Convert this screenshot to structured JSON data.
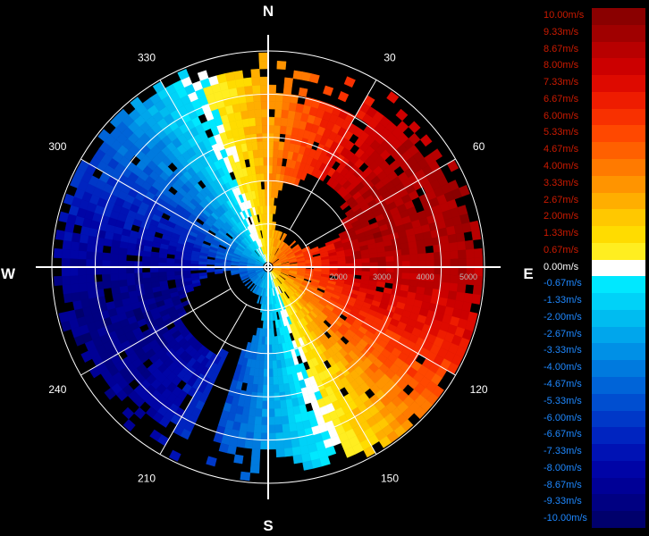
{
  "chart_data": {
    "type": "polar radial-velocity map",
    "grid": true,
    "directions": {
      "north": "N",
      "east": "E",
      "south": "S",
      "west": "W"
    },
    "azimuth_tick_labels": [
      {
        "deg": 30,
        "label": "30"
      },
      {
        "deg": 60,
        "label": "60"
      },
      {
        "deg": 120,
        "label": "120"
      },
      {
        "deg": 150,
        "label": "150"
      },
      {
        "deg": 210,
        "label": "210"
      },
      {
        "deg": 240,
        "label": "240"
      },
      {
        "deg": 300,
        "label": "300"
      },
      {
        "deg": 330,
        "label": "330"
      }
    ],
    "range_rings": [
      1000,
      2000,
      3000,
      4000,
      5000
    ],
    "range_labels": [
      "2000",
      "3000",
      "4000",
      "5000"
    ],
    "colorbar": [
      {
        "label": "10.00m/s",
        "color": "#8a0000"
      },
      {
        "label": "9.33m/s",
        "color": "#a00000"
      },
      {
        "label": "8.67m/s",
        "color": "#b80000"
      },
      {
        "label": "8.00m/s",
        "color": "#cc0000"
      },
      {
        "label": "7.33m/s",
        "color": "#de0a00"
      },
      {
        "label": "6.67m/s",
        "color": "#ee1c00"
      },
      {
        "label": "6.00m/s",
        "color": "#f83000"
      },
      {
        "label": "5.33m/s",
        "color": "#ff4800"
      },
      {
        "label": "4.67m/s",
        "color": "#ff6000"
      },
      {
        "label": "4.00m/s",
        "color": "#ff7a00"
      },
      {
        "label": "3.33m/s",
        "color": "#ff9400"
      },
      {
        "label": "2.67m/s",
        "color": "#ffae00"
      },
      {
        "label": "2.00m/s",
        "color": "#ffc800"
      },
      {
        "label": "1.33m/s",
        "color": "#ffdc00"
      },
      {
        "label": "0.67m/s",
        "color": "#ffee20"
      },
      {
        "label": "0.00m/s",
        "color": "#ffffff"
      },
      {
        "label": "-0.67m/s",
        "color": "#00e8ff"
      },
      {
        "label": "-1.33m/s",
        "color": "#00d2f8"
      },
      {
        "label": "-2.00m/s",
        "color": "#00bcf0"
      },
      {
        "label": "-2.67m/s",
        "color": "#00a6ec"
      },
      {
        "label": "-3.33m/s",
        "color": "#0090e6"
      },
      {
        "label": "-4.00m/s",
        "color": "#007ade"
      },
      {
        "label": "-4.67m/s",
        "color": "#0064d8"
      },
      {
        "label": "-5.33m/s",
        "color": "#004ed0"
      },
      {
        "label": "-6.00m/s",
        "color": "#0038c8"
      },
      {
        "label": "-6.67m/s",
        "color": "#0024c0"
      },
      {
        "label": "-7.33m/s",
        "color": "#0012b4"
      },
      {
        "label": "-8.00m/s",
        "color": "#0004a6"
      },
      {
        "label": "-8.67m/s",
        "color": "#000096"
      },
      {
        "label": "-9.33m/s",
        "color": "#000082"
      },
      {
        "label": "-10.00m/s",
        "color": "#00006c"
      }
    ],
    "colorbar_label_colors": {
      "positive": "#cc1a00",
      "zero": "#ffffff",
      "negative": "#1e88ff"
    },
    "colors": {
      "background": "#000000",
      "grid_line": "#ffffff",
      "range_label": "#bbbbbb"
    }
  }
}
